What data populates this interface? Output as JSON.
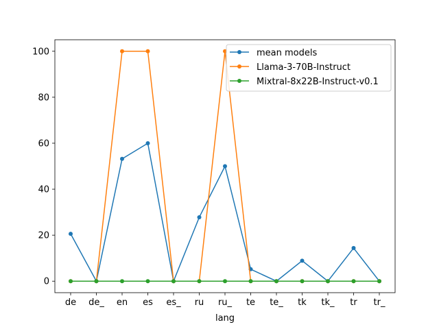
{
  "chart_data": {
    "type": "line",
    "categories": [
      "de",
      "de_",
      "en",
      "es",
      "es_",
      "ru",
      "ru_",
      "te",
      "te_",
      "tk",
      "tk_",
      "tr",
      "tr_"
    ],
    "xlabel": "lang",
    "ylabel": "",
    "title": "",
    "ylim": [
      -5,
      105
    ],
    "yticks": [
      0,
      20,
      40,
      60,
      80,
      100
    ],
    "grid": false,
    "legend_position": "top-right",
    "series": [
      {
        "name": "mean models",
        "color": "#1f77b4",
        "values": [
          20.6,
          0,
          53.2,
          60,
          0,
          27.8,
          50,
          5.2,
          0,
          8.9,
          0,
          14.4,
          0
        ]
      },
      {
        "name": "Llama-3-70B-Instruct",
        "color": "#ff7f0e",
        "values": [
          0,
          0,
          100,
          100,
          0,
          0,
          100,
          0,
          0,
          0,
          0,
          0,
          0
        ]
      },
      {
        "name": "Mixtral-8x22B-Instruct-v0.1",
        "color": "#2ca02c",
        "values": [
          0,
          0,
          0,
          0,
          0,
          0,
          0,
          0,
          0,
          0,
          0,
          0,
          0
        ]
      }
    ]
  }
}
